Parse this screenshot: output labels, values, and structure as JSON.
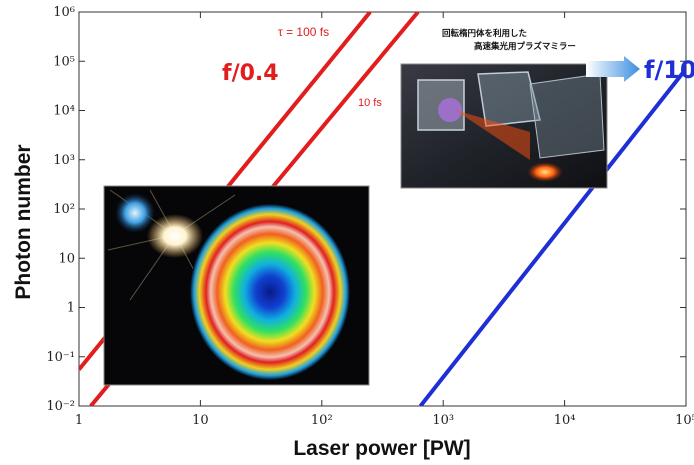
{
  "chart_data": {
    "type": "line",
    "xlabel": "Laser power  [PW]",
    "ylabel": "Photon number",
    "x_scale": "log",
    "y_scale": "log",
    "xlim": [
      1,
      100000
    ],
    "ylim": [
      0.01,
      1000000
    ],
    "x_ticks": [
      {
        "value": 1,
        "label": "1"
      },
      {
        "value": 10,
        "label": "10"
      },
      {
        "value": 100,
        "label": "10²"
      },
      {
        "value": 1000,
        "label": "10³"
      },
      {
        "value": 10000,
        "label": "10⁴"
      },
      {
        "value": 100000,
        "label": "10⁵"
      }
    ],
    "y_ticks": [
      {
        "value": 0.01,
        "label": "10⁻²"
      },
      {
        "value": 0.1,
        "label": "10⁻¹"
      },
      {
        "value": 1,
        "label": "1"
      },
      {
        "value": 10,
        "label": "10"
      },
      {
        "value": 100,
        "label": "10²"
      },
      {
        "value": 1000,
        "label": "10³"
      },
      {
        "value": 10000,
        "label": "10⁴"
      },
      {
        "value": 100000,
        "label": "10⁵"
      },
      {
        "value": 1000000,
        "label": "10⁶"
      }
    ],
    "grid": false,
    "series": [
      {
        "color": "#e11d1d",
        "points": [
          [
            1,
            0.055
          ],
          [
            250,
            1000000
          ]
        ]
      },
      {
        "color": "#e11d1d",
        "points": [
          [
            1.25,
            0.01
          ],
          [
            620,
            1000000
          ]
        ]
      },
      {
        "color": "#1f2fd6",
        "points": [
          [
            650,
            0.01
          ],
          [
            100000,
            70000
          ]
        ]
      }
    ],
    "annotations": [
      {
        "text": "τ = 100 fs",
        "color": "#e11d1d"
      },
      {
        "text": "10 fs",
        "color": "#e11d1d"
      },
      {
        "text": "f/0.4",
        "color": "#e11d1d"
      },
      {
        "text": "f/10",
        "color": "#1f2fd6"
      },
      {
        "text": "回転楕円体を利用した",
        "color": "#111111"
      },
      {
        "text": "高速集光用プラズマミラー",
        "color": "#111111"
      }
    ]
  }
}
